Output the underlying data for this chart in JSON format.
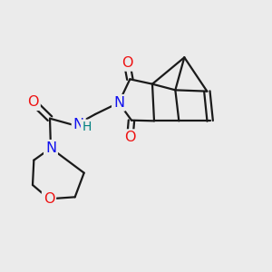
{
  "bg_color": "#ebebeb",
  "bond_color": "#1a1a1a",
  "bond_width": 1.6,
  "figsize": [
    3.0,
    3.0
  ],
  "dpi": 100,
  "xlim": [
    0,
    300
  ],
  "ylim": [
    0,
    300
  ]
}
